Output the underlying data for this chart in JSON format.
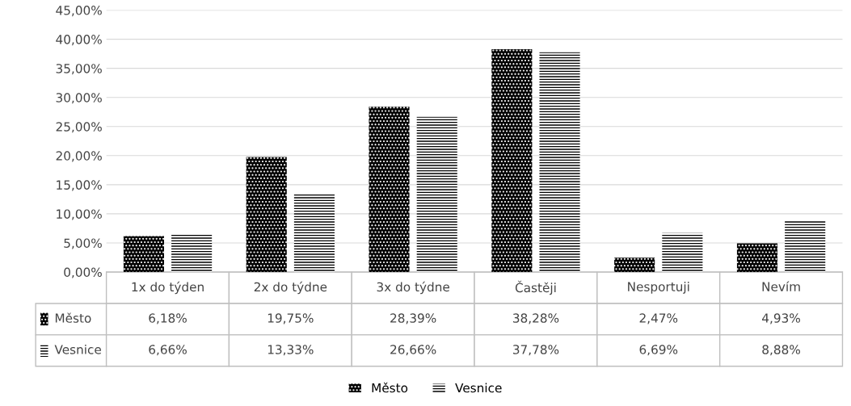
{
  "chart_data": {
    "type": "bar",
    "categories": [
      "1x do týden",
      "2x do týdne",
      "3x do týdne",
      "Častěji",
      "Nesportuji",
      "Nevím"
    ],
    "series": [
      {
        "name": "Město",
        "color": "#000000",
        "values": [
          6.18,
          19.75,
          28.39,
          38.28,
          2.47,
          4.93
        ],
        "value_labels": [
          "6,18%",
          "19,75%",
          "28,39%",
          "38,28%",
          "2,47%",
          "4,93%"
        ]
      },
      {
        "name": "Vesnice",
        "color": "#ffffff",
        "values": [
          6.66,
          13.33,
          26.66,
          37.78,
          6.69,
          8.88
        ],
        "value_labels": [
          "6,66%",
          "13,33%",
          "26,66%",
          "37,78%",
          "6,69%",
          "8,88%"
        ]
      }
    ],
    "ylim": [
      0,
      45
    ],
    "yticks": [
      {
        "value": 0,
        "label": "0,00%"
      },
      {
        "value": 5,
        "label": "5,00%"
      },
      {
        "value": 10,
        "label": "10,00%"
      },
      {
        "value": 15,
        "label": "15,00%"
      },
      {
        "value": 20,
        "label": "20,00%"
      },
      {
        "value": 25,
        "label": "25,00%"
      },
      {
        "value": 30,
        "label": "30,00%"
      },
      {
        "value": 35,
        "label": "35,00%"
      },
      {
        "value": 40,
        "label": "40,00%"
      },
      {
        "value": 45,
        "label": "45,00%"
      }
    ],
    "grid": "y",
    "legend": "bottom"
  }
}
